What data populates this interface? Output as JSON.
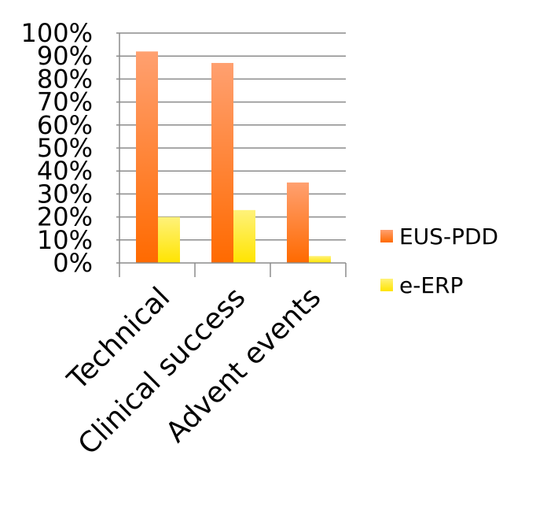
{
  "chart_data": {
    "type": "bar",
    "categories": [
      "Technical",
      "Clinical success",
      "Advent events"
    ],
    "series": [
      {
        "name": "EUS-PDD",
        "values": [
          92,
          87,
          35
        ],
        "color": "#ff7a1f"
      },
      {
        "name": "e-ERP",
        "values": [
          20,
          23,
          3
        ],
        "color": "#ffee00"
      }
    ],
    "yticks": [
      "0%",
      "10%",
      "20%",
      "30%",
      "40%",
      "50%",
      "60%",
      "70%",
      "80%",
      "90%",
      "100%"
    ],
    "ylim": [
      0,
      100
    ],
    "grid": true,
    "legend_position": "right"
  }
}
